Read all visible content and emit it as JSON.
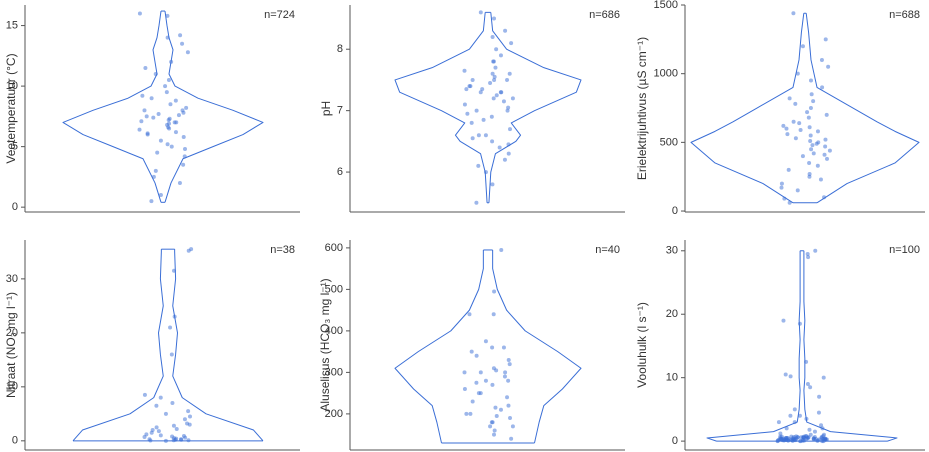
{
  "chart_data": [
    {
      "type": "violin",
      "ylabel": "Veetemperatuur (°C)",
      "annotation": "n=724",
      "ylim": [
        -0.4,
        16.7
      ],
      "yticks": [
        0,
        5,
        10,
        15
      ],
      "color": "#3a6ed6",
      "density": {
        "y": [
          0.4,
          2,
          4,
          5,
          6,
          7,
          8,
          9,
          10,
          11,
          12,
          13,
          14,
          15,
          16.2
        ],
        "width": [
          0.02,
          0.08,
          0.2,
          0.5,
          0.8,
          1.0,
          0.7,
          0.35,
          0.12,
          0.06,
          0.08,
          0.1,
          0.06,
          0.04,
          0.02
        ]
      },
      "points": [
        7,
        6.5,
        7.2,
        8,
        5.5,
        6.8,
        7.5,
        9,
        4.2,
        10.5,
        12,
        14.2,
        3,
        2,
        1,
        0.5,
        15.8,
        16,
        11,
        13.5,
        6,
        7.8,
        8.5,
        6.2,
        7.1,
        5,
        4.8,
        9.5,
        10,
        7.3,
        6.9,
        8.2,
        5.8,
        6.4,
        7.6,
        3.5,
        2.5,
        11.5,
        12.8,
        14,
        7,
        6.6,
        8.8,
        5.2,
        7.4,
        6.1,
        9.2,
        4.5,
        8,
        7.7
      ]
    },
    {
      "type": "violin",
      "ylabel": "pH",
      "annotation": "n=686",
      "ylim": [
        5.35,
        8.72
      ],
      "yticks": [
        6,
        7,
        8
      ],
      "color": "#3a6ed6",
      "density": {
        "y": [
          5.5,
          6,
          6.3,
          6.5,
          6.6,
          6.8,
          7.0,
          7.3,
          7.5,
          7.7,
          8.0,
          8.3,
          8.6
        ],
        "width": [
          0.01,
          0.03,
          0.08,
          0.3,
          0.35,
          0.25,
          0.5,
          0.95,
          1.0,
          0.6,
          0.2,
          0.05,
          0.03
        ]
      },
      "points": [
        7.3,
        7.5,
        7.2,
        7.4,
        6.6,
        6.5,
        6.8,
        7.0,
        7.6,
        7.8,
        8.0,
        8.3,
        8.6,
        6.2,
        6.0,
        5.5,
        5.8,
        7.1,
        7.3,
        7.5,
        6.55,
        6.45,
        7.7,
        7.9,
        7.35,
        7.25,
        6.7,
        6.9,
        7.45,
        7.55,
        8.5,
        8.1,
        6.3,
        7.65,
        7.15,
        7.05,
        6.6,
        7.4,
        7.2,
        7.6,
        6.4,
        7.8,
        7.3,
        8.2,
        6.1,
        7.5,
        6.95,
        7.35,
        7.0,
        6.85
      ]
    },
    {
      "type": "violin",
      "ylabel": "Erielektrijuhtivus (µS cm⁻¹)",
      "annotation": "n=688",
      "ylim": [
        -7,
        1500
      ],
      "yticks": [
        0,
        500,
        1000,
        1500
      ],
      "color": "#3a6ed6",
      "density": {
        "y": [
          60,
          200,
          350,
          500,
          580,
          650,
          750,
          900,
          1100,
          1300,
          1440
        ],
        "width": [
          0.1,
          0.35,
          0.75,
          0.95,
          0.75,
          0.6,
          0.4,
          0.1,
          0.05,
          0.03,
          0.01
        ]
      },
      "points": [
        500,
        450,
        550,
        600,
        400,
        350,
        300,
        650,
        700,
        750,
        800,
        900,
        1000,
        1100,
        1200,
        1440,
        250,
        200,
        150,
        100,
        60,
        520,
        480,
        580,
        620,
        420,
        380,
        680,
        720,
        850,
        950,
        1050,
        1250,
        170,
        230,
        470,
        530,
        560,
        440,
        610,
        490,
        510,
        330,
        270,
        780,
        820,
        90,
        640,
        410,
        590
      ]
    },
    {
      "type": "violin",
      "ylabel": "Nitraat (NO₃ mg l⁻¹)",
      "annotation": "n=38",
      "ylim": [
        -1.7,
        37.2
      ],
      "yticks": [
        0,
        10,
        20,
        30
      ],
      "color": "#3a6ed6",
      "density": {
        "y": [
          0,
          2,
          5,
          8,
          12,
          16,
          20,
          25,
          30,
          35,
          35.5
        ],
        "width": [
          1.0,
          0.9,
          0.4,
          0.15,
          0.05,
          0.08,
          0.1,
          0.05,
          0.08,
          0.07,
          0.07
        ]
      },
      "points": [
        0.2,
        0.5,
        0.1,
        0.3,
        0,
        0.8,
        1.5,
        2.5,
        3,
        2.8,
        0.4,
        0.6,
        1,
        4,
        5,
        6.5,
        7,
        8.5,
        8,
        3.2,
        2,
        0.1,
        0.2,
        0.3,
        1.2,
        2.2,
        4.5,
        16,
        21,
        23,
        31.5,
        35.5,
        35.2,
        0.7,
        0.9,
        5.5,
        1.8,
        0.05
      ]
    },
    {
      "type": "violin",
      "ylabel": "Aluselisus (HCO₃ mg l⁻¹)",
      "annotation": "n=40",
      "ylim": [
        113,
        619
      ],
      "yticks": [
        200,
        300,
        400,
        500,
        600
      ],
      "color": "#3a6ed6",
      "density": {
        "y": [
          130,
          180,
          220,
          260,
          310,
          350,
          400,
          450,
          500,
          550,
          595
        ],
        "width": [
          0.5,
          0.55,
          0.6,
          0.8,
          1.0,
          0.75,
          0.4,
          0.2,
          0.1,
          0.05,
          0.05
        ]
      },
      "points": [
        595,
        495,
        440,
        440,
        375,
        360,
        350,
        340,
        320,
        310,
        305,
        300,
        300,
        290,
        280,
        275,
        270,
        260,
        250,
        240,
        230,
        220,
        215,
        210,
        200,
        195,
        190,
        180,
        170,
        160,
        150,
        140,
        330,
        300,
        360,
        280,
        250,
        200,
        170,
        180
      ]
    },
    {
      "type": "violin",
      "ylabel": "Vooluhulk (l s⁻¹)",
      "annotation": "n=100",
      "ylim": [
        -1.4,
        31.7
      ],
      "yticks": [
        0,
        10,
        20,
        30
      ],
      "color": "#3a6ed6",
      "density": {
        "y": [
          0,
          0.5,
          1.5,
          3,
          5,
          8,
          10,
          13,
          16,
          19,
          22,
          26,
          30
        ],
        "width": [
          0.9,
          1.0,
          0.3,
          0.05,
          0.03,
          0.02,
          0.03,
          0.03,
          0.02,
          0.03,
          0.02,
          0.02,
          0.02
        ]
      },
      "points": [
        30,
        29,
        29.5,
        19,
        18.5,
        12.5,
        10.5,
        10.2,
        10,
        9,
        8.5,
        7,
        5,
        4.5,
        4,
        4,
        3.5,
        3,
        3,
        2.5,
        2,
        2,
        1.8,
        1.5,
        1.2,
        1,
        1,
        0.8,
        0.7,
        0.6,
        0.5,
        0.4,
        0.3,
        0.2,
        0.1,
        0,
        0.05,
        0.15,
        0.25,
        0.35,
        0.45,
        0.55,
        0.65,
        0.75,
        0.1,
        0.2,
        0.3,
        0.4,
        0.5,
        0.6,
        0.7,
        0,
        0.05,
        0.1,
        0.15,
        0.2,
        0.25,
        0.3,
        0.35,
        0.4,
        0.45,
        0.5,
        0.55,
        0.6,
        0.65,
        0.7,
        0.75,
        0.8,
        0,
        0.1,
        0.2,
        0.3,
        0.4,
        0.5,
        0.6,
        0.7,
        0.05,
        0.15,
        0.25,
        0.35,
        0.45,
        0.55,
        0.65,
        0,
        0.1,
        0.2,
        0.3,
        0.4,
        0.5,
        0.6,
        0.05,
        0.15,
        0.25,
        0.35,
        0.45,
        0,
        0.1,
        0.2,
        0.3,
        0.4
      ]
    }
  ]
}
